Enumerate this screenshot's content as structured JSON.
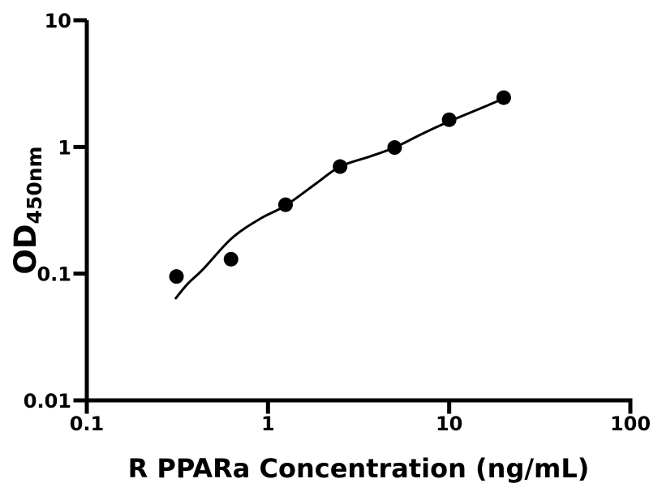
{
  "chart_data": {
    "type": "scatter",
    "title": "",
    "xlabel": "R PPARa Concentration (ng/mL)",
    "ylabel_base": "OD",
    "ylabel_sub": "450nm",
    "xscale": "log",
    "yscale": "log",
    "xlim": [
      0.1,
      100
    ],
    "ylim": [
      0.01,
      10
    ],
    "x_ticks": {
      "values": [
        0.1,
        1,
        10,
        100
      ],
      "labels": [
        "0.1",
        "1",
        "10",
        "100"
      ]
    },
    "y_ticks": {
      "values": [
        0.01,
        0.1,
        1,
        10
      ],
      "labels": [
        "0.01",
        "0.1",
        "1",
        "10"
      ]
    },
    "grid": false,
    "legend": null,
    "series": [
      {
        "name": "standard-points",
        "type": "scatter",
        "marker": "circle",
        "x": [
          0.3125,
          0.625,
          1.25,
          2.5,
          5,
          10,
          20
        ],
        "y": [
          0.095,
          0.13,
          0.35,
          0.7,
          0.99,
          1.64,
          2.45
        ]
      },
      {
        "name": "fit-curve",
        "type": "line",
        "x": [
          0.31,
          0.36,
          0.44,
          0.63,
          0.9,
          1.25,
          1.86,
          2.5,
          3.64,
          5.0,
          7.1,
          10.1,
          14.7,
          20.5
        ],
        "y": [
          0.064,
          0.083,
          0.109,
          0.19,
          0.27,
          0.345,
          0.52,
          0.7,
          0.84,
          0.99,
          1.27,
          1.6,
          2.0,
          2.45
        ]
      }
    ],
    "colors": {
      "marker": "#000000",
      "line": "#000000",
      "axis": "#000000",
      "text": "#000000",
      "background": "#ffffff"
    }
  }
}
